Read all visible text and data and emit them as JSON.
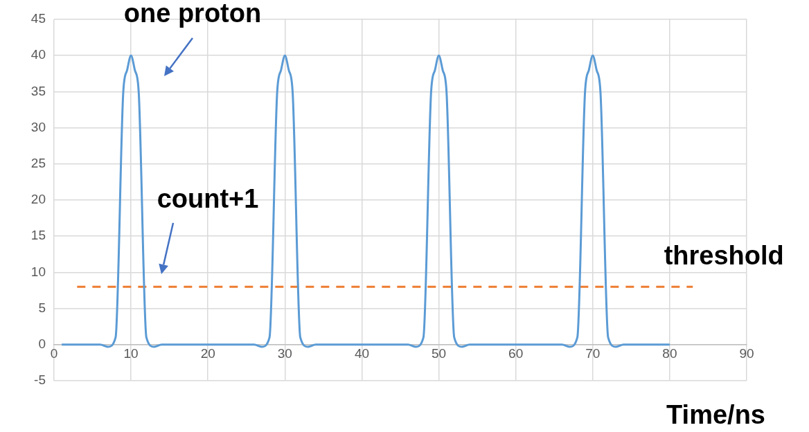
{
  "chart_data": {
    "type": "line",
    "xlabel": "Time/ns",
    "marker": "none",
    "grid": true,
    "legend": false,
    "xlim": [
      0,
      90
    ],
    "xticks": [
      0,
      10,
      20,
      30,
      40,
      50,
      60,
      70,
      80,
      90
    ],
    "ylim": [
      -5,
      45
    ],
    "yticks": [
      -5,
      0,
      5,
      10,
      15,
      20,
      25,
      30,
      35,
      40,
      45
    ],
    "series": [
      {
        "color": "#5b9bd5",
        "line_style": "solid",
        "x": [
          1,
          6,
          7,
          8,
          9,
          9.5,
          10,
          10.5,
          11,
          12,
          13,
          14,
          26,
          27,
          28,
          29,
          29.5,
          30,
          30.5,
          31,
          32,
          33,
          34,
          46,
          47,
          48,
          49,
          49.5,
          50,
          50.5,
          51,
          52,
          53,
          54,
          66,
          67,
          68,
          69,
          69.5,
          70,
          70.5,
          71,
          72,
          73,
          74,
          80
        ],
        "values": [
          0,
          0,
          -0.3,
          1,
          35,
          38,
          40,
          38,
          35,
          1,
          -0.3,
          0,
          0,
          -0.3,
          1,
          35,
          38,
          40,
          38,
          35,
          1,
          -0.3,
          0,
          0,
          -0.3,
          1,
          35,
          38,
          40,
          38,
          35,
          1,
          -0.3,
          0,
          0,
          -0.3,
          1,
          35,
          38,
          40,
          38,
          35,
          1,
          -0.3,
          0,
          0
        ]
      },
      {
        "name": "threshold",
        "color": "#ed7d31",
        "line_style": "dashed",
        "x": [
          3,
          83
        ],
        "values": [
          8,
          8
        ]
      }
    ],
    "annotations": [
      "one proton",
      "count+1"
    ]
  }
}
